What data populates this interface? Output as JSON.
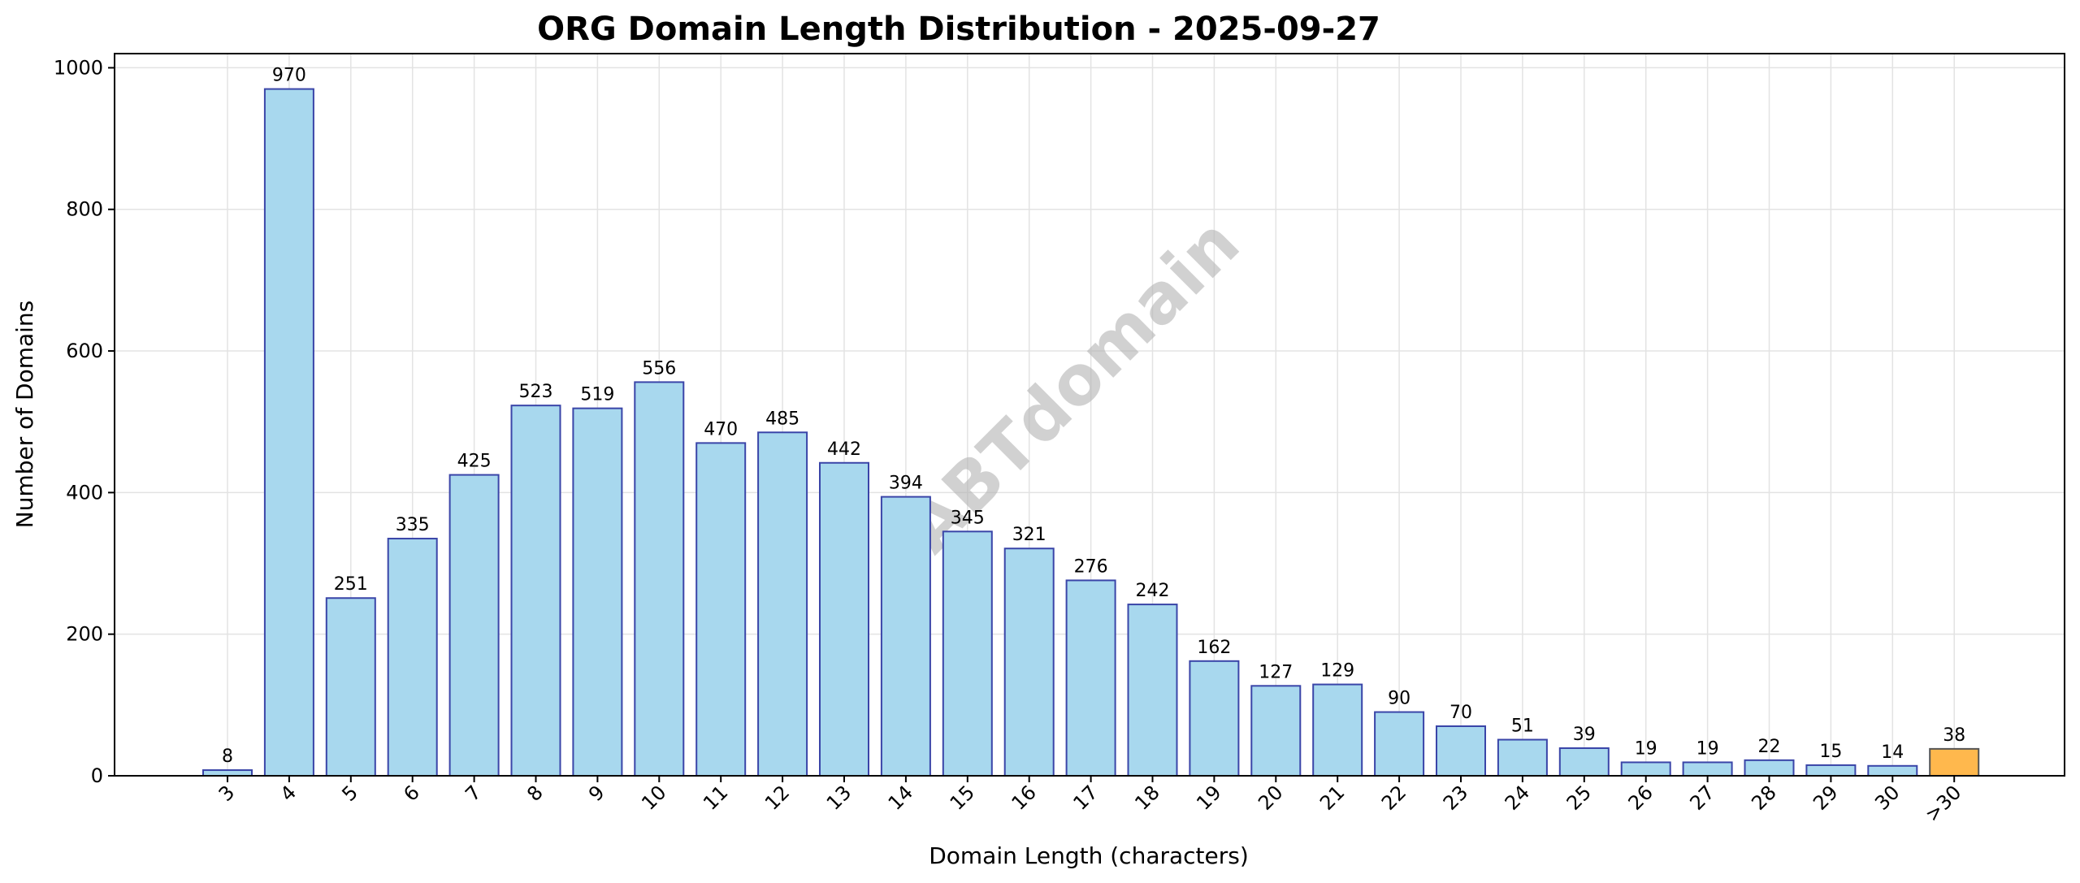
{
  "chart_data": {
    "type": "bar",
    "title": "ORG Domain Length Distribution - 2025-09-27",
    "xlabel": "Domain Length (characters)",
    "ylabel": "Number of Domains",
    "watermark": "ABTdomain",
    "categories": [
      "3",
      "4",
      "5",
      "6",
      "7",
      "8",
      "9",
      "10",
      "11",
      "12",
      "13",
      "14",
      "15",
      "16",
      "17",
      "18",
      "19",
      "20",
      "21",
      "22",
      "23",
      "24",
      "25",
      "26",
      "27",
      "28",
      "29",
      "30",
      ">30"
    ],
    "values": [
      8,
      970,
      251,
      335,
      425,
      523,
      519,
      556,
      470,
      485,
      442,
      394,
      345,
      321,
      276,
      242,
      162,
      127,
      129,
      90,
      70,
      51,
      39,
      19,
      19,
      22,
      15,
      14,
      38
    ],
    "ylim": [
      0,
      1020
    ],
    "yticks": [
      0,
      200,
      400,
      600,
      800,
      1000
    ],
    "grid": true,
    "colors": {
      "bar_fill": "#a8d8ee",
      "bar_edge": "#3a45a8",
      "highlight_fill": "#ffb84d",
      "highlight_edge": "#555555"
    },
    "highlight_category": ">30"
  }
}
